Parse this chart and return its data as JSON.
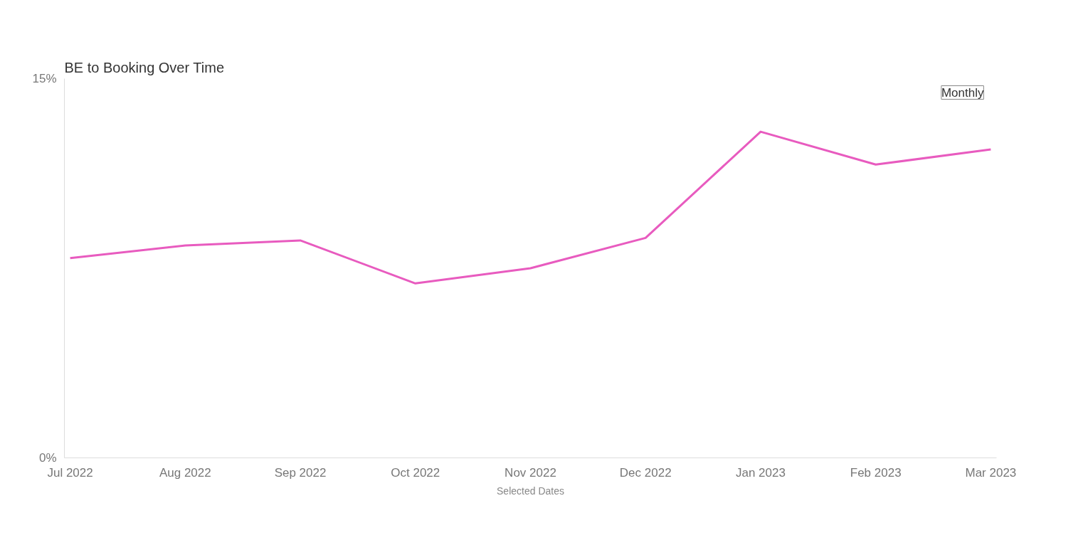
{
  "chart_data": {
    "type": "line",
    "title": "BE to Booking Over Time",
    "xlabel": "Selected Dates",
    "categories": [
      "Jul 2022",
      "Aug 2022",
      "Sep 2022",
      "Oct 2022",
      "Nov 2022",
      "Dec 2022",
      "Jan 2023",
      "Feb 2023",
      "Mar 2023"
    ],
    "series": [
      {
        "color": "#e85bbf",
        "values": [
          7.9,
          8.4,
          8.6,
          6.9,
          7.5,
          8.7,
          12.9,
          11.6,
          12.2
        ]
      }
    ],
    "ylim": [
      0,
      15
    ],
    "yticks": [
      {
        "value": 0,
        "label": "0%"
      },
      {
        "value": 15,
        "label": "15%"
      }
    ],
    "grid": false,
    "marker": "none",
    "line_style": "solid",
    "annotations": [
      "Monthly"
    ]
  }
}
